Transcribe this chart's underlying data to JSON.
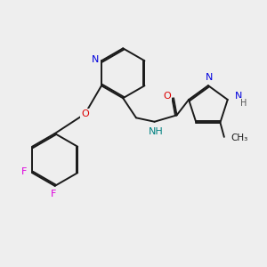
{
  "background_color": "#eeeeee",
  "bond_color": "#1a1a1a",
  "atom_colors": {
    "N": "#0000dd",
    "O": "#dd0000",
    "F": "#dd00dd",
    "NH_teal": "#008080",
    "C": "#1a1a1a"
  },
  "lw": 1.4,
  "double_sep": 0.055
}
